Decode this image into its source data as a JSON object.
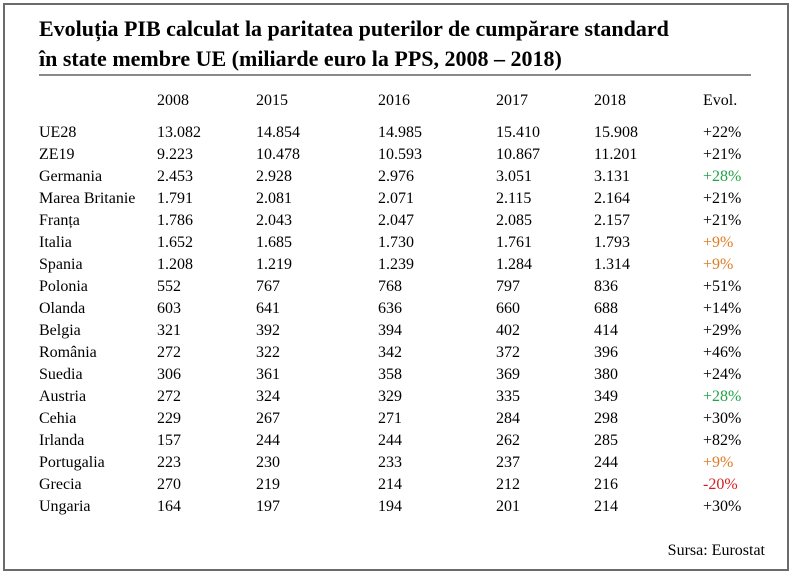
{
  "title_line1": "Evoluția PIB calculat la paritatea puterilor de cumpărare standard",
  "title_line2": "în state membre UE (miliarde euro la PPS, 2008 – 2018)",
  "headers": [
    "",
    "2008",
    "2015",
    "2016",
    "2017",
    "2018",
    "Evol."
  ],
  "colors": {
    "green": "#22a24a",
    "orange": "#e07b1f",
    "red": "#d11f1f",
    "black": "#000000"
  },
  "rows": [
    {
      "name": "UE28",
      "y2008": "13.082",
      "y2015": "14.854",
      "y2016": "14.985",
      "y2017": "15.410",
      "y2018": "15.908",
      "evol": "+22%",
      "color": "black"
    },
    {
      "name": "ZE19",
      "y2008": "9.223",
      "y2015": "10.478",
      "y2016": "10.593",
      "y2017": "10.867",
      "y2018": "11.201",
      "evol": "+21%",
      "color": "black"
    },
    {
      "name": "Germania",
      "y2008": "2.453",
      "y2015": "2.928",
      "y2016": "2.976",
      "y2017": "3.051",
      "y2018": "3.131",
      "evol": "+28%",
      "color": "green"
    },
    {
      "name": "Marea Britanie",
      "y2008": "1.791",
      "y2015": "2.081",
      "y2016": "2.071",
      "y2017": "2.115",
      "y2018": "2.164",
      "evol": "+21%",
      "color": "black"
    },
    {
      "name": "Franța",
      "y2008": "1.786",
      "y2015": "2.043",
      "y2016": "2.047",
      "y2017": "2.085",
      "y2018": "2.157",
      "evol": "+21%",
      "color": "black"
    },
    {
      "name": "Italia",
      "y2008": "1.652",
      "y2015": "1.685",
      "y2016": "1.730",
      "y2017": "1.761",
      "y2018": "1.793",
      "evol": "+9%",
      "color": "orange"
    },
    {
      "name": "Spania",
      "y2008": "1.208",
      "y2015": "1.219",
      "y2016": "1.239",
      "y2017": "1.284",
      "y2018": "1.314",
      "evol": "+9%",
      "color": "orange"
    },
    {
      "name": "Polonia",
      "y2008": "552",
      "y2015": "767",
      "y2016": "768",
      "y2017": "797",
      "y2018": "836",
      "evol": "+51%",
      "color": "black"
    },
    {
      "name": "Olanda",
      "y2008": "603",
      "y2015": "641",
      "y2016": "636",
      "y2017": "660",
      "y2018": "688",
      "evol": "+14%",
      "color": "black"
    },
    {
      "name": "Belgia",
      "y2008": "321",
      "y2015": "392",
      "y2016": "394",
      "y2017": "402",
      "y2018": "414",
      "evol": "+29%",
      "color": "black"
    },
    {
      "name": "România",
      "y2008": "272",
      "y2015": "322",
      "y2016": "342",
      "y2017": "372",
      "y2018": "396",
      "evol": "+46%",
      "color": "black"
    },
    {
      "name": "Suedia",
      "y2008": "306",
      "y2015": "361",
      "y2016": "358",
      "y2017": "369",
      "y2018": "380",
      "evol": "+24%",
      "color": "black"
    },
    {
      "name": "Austria",
      "y2008": "272",
      "y2015": "324",
      "y2016": "329",
      "y2017": "335",
      "y2018": "349",
      "evol": "+28%",
      "color": "green"
    },
    {
      "name": "Cehia",
      "y2008": "229",
      "y2015": "267",
      "y2016": "271",
      "y2017": "284",
      "y2018": "298",
      "evol": "+30%",
      "color": "black"
    },
    {
      "name": "Irlanda",
      "y2008": "157",
      "y2015": "244",
      "y2016": "244",
      "y2017": "262",
      "y2018": "285",
      "evol": "+82%",
      "color": "black"
    },
    {
      "name": "Portugalia",
      "y2008": "223",
      "y2015": "230",
      "y2016": "233",
      "y2017": "237",
      "y2018": "244",
      "evol": "+9%",
      "color": "orange"
    },
    {
      "name": "Grecia",
      "y2008": "270",
      "y2015": "219",
      "y2016": "214",
      "y2017": "212",
      "y2018": "216",
      "evol": "-20%",
      "color": "red"
    },
    {
      "name": "Ungaria",
      "y2008": "164",
      "y2015": "197",
      "y2016": "194",
      "y2017": "201",
      "y2018": "214",
      "evol": "+30%",
      "color": "black"
    }
  ],
  "source": "Sursa: Eurostat"
}
